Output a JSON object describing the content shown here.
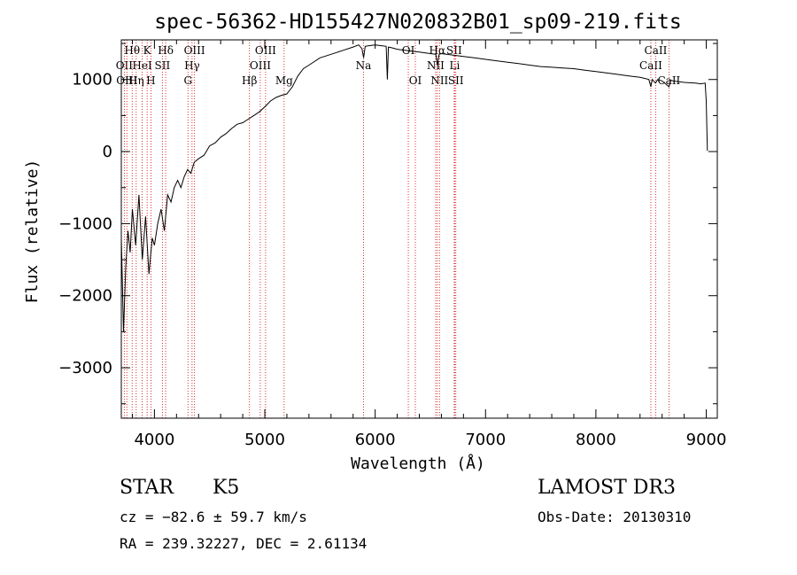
{
  "chart_data": {
    "type": "line",
    "title": "spec-56362-HD155427N020832B01_sp09-219.fits",
    "xlabel": "Wavelength (Å)",
    "ylabel": "Flux (relative)",
    "xlim": [
      3700,
      9100
    ],
    "ylim": [
      -3700,
      1550
    ],
    "xticks": [
      4000,
      5000,
      6000,
      7000,
      8000,
      9000
    ],
    "yticks": [
      -3000,
      -2000,
      -1000,
      0,
      1000
    ],
    "grid": false,
    "series": [
      {
        "x": [
          3700,
          3720,
          3740,
          3760,
          3780,
          3800,
          3830,
          3860,
          3890,
          3920,
          3950,
          3980,
          4000,
          4030,
          4060,
          4090,
          4120,
          4150,
          4180,
          4210,
          4240,
          4270,
          4300,
          4330,
          4360,
          4400,
          4450,
          4500,
          4550,
          4600,
          4650,
          4700,
          4750,
          4800,
          4850,
          4900,
          4950,
          5000,
          5050,
          5100,
          5150,
          5200,
          5250,
          5300,
          5350,
          5400,
          5500,
          5600,
          5700,
          5800,
          5850,
          5880,
          5895,
          5910,
          5950,
          6000,
          6050,
          6100,
          6110,
          6120,
          6150,
          6200,
          6300,
          6400,
          6500,
          6550,
          6563,
          6580,
          6600,
          6700,
          6800,
          6900,
          7000,
          7100,
          7200,
          7300,
          7400,
          7500,
          7600,
          7700,
          7800,
          7900,
          8000,
          8100,
          8200,
          8300,
          8400,
          8480,
          8498,
          8510,
          8540,
          8560,
          8600,
          8662,
          8680,
          8700,
          8800,
          8900,
          8950,
          8990,
          9000,
          9010
        ],
        "y": [
          -1200,
          -2500,
          -1600,
          -1100,
          -1400,
          -800,
          -1300,
          -600,
          -1500,
          -900,
          -1700,
          -1200,
          -1300,
          -1000,
          -800,
          -1100,
          -600,
          -700,
          -500,
          -400,
          -500,
          -350,
          -250,
          -300,
          -150,
          -100,
          -50,
          80,
          120,
          200,
          250,
          320,
          380,
          400,
          450,
          500,
          550,
          620,
          700,
          750,
          780,
          800,
          900,
          1050,
          1150,
          1200,
          1300,
          1350,
          1400,
          1450,
          1480,
          1430,
          1300,
          1460,
          1470,
          1480,
          1470,
          1460,
          1000,
          1450,
          1440,
          1420,
          1400,
          1380,
          1360,
          1350,
          1200,
          1350,
          1360,
          1340,
          1320,
          1300,
          1280,
          1260,
          1240,
          1220,
          1200,
          1180,
          1170,
          1160,
          1150,
          1130,
          1110,
          1090,
          1070,
          1050,
          1030,
          1000,
          900,
          1000,
          950,
          1000,
          980,
          900,
          990,
          980,
          960,
          950,
          940,
          950,
          700,
          10
        ]
      }
    ],
    "line_markers": [
      {
        "wl": 3727,
        "labels": [
          "OII"
        ],
        "row": 1
      },
      {
        "wl": 3750,
        "labels": [
          "OIII"
        ],
        "row": 2
      },
      {
        "wl": 3798,
        "labels": [
          "Hθ"
        ],
        "row": 0
      },
      {
        "wl": 3835,
        "labels": [
          "Hη"
        ],
        "row": 2
      },
      {
        "wl": 3889,
        "labels": [
          "HeI"
        ],
        "row": 1
      },
      {
        "wl": 3934,
        "labels": [
          "K"
        ],
        "row": 0
      },
      {
        "wl": 3968,
        "labels": [
          "H"
        ],
        "row": 2
      },
      {
        "wl": 4072,
        "labels": [
          "SII"
        ],
        "row": 1
      },
      {
        "wl": 4102,
        "labels": [
          "Hδ"
        ],
        "row": 0
      },
      {
        "wl": 4304,
        "labels": [
          "G"
        ],
        "row": 2
      },
      {
        "wl": 4341,
        "labels": [
          "Hγ"
        ],
        "row": 1
      },
      {
        "wl": 4363,
        "labels": [
          "OIII"
        ],
        "row": 0
      },
      {
        "wl": 4861,
        "labels": [
          "Hβ"
        ],
        "row": 2
      },
      {
        "wl": 4959,
        "labels": [
          "OIII"
        ],
        "row": 1
      },
      {
        "wl": 5007,
        "labels": [
          "OIII"
        ],
        "row": 0
      },
      {
        "wl": 5175,
        "labels": [
          "Mg"
        ],
        "row": 2
      },
      {
        "wl": 5894,
        "labels": [
          "Na"
        ],
        "row": 1
      },
      {
        "wl": 6300,
        "labels": [
          "OI"
        ],
        "row": 0
      },
      {
        "wl": 6364,
        "labels": [
          "OI"
        ],
        "row": 2
      },
      {
        "wl": 6548,
        "labels": [
          "NII"
        ],
        "row": 1
      },
      {
        "wl": 6563,
        "labels": [
          "Hα"
        ],
        "row": 0
      },
      {
        "wl": 6583,
        "labels": [
          "NII"
        ],
        "row": 2
      },
      {
        "wl": 6716,
        "labels": [
          "SII"
        ],
        "row": 0
      },
      {
        "wl": 6731,
        "labels": [
          "SII"
        ],
        "row": 2
      },
      {
        "wl": 6720,
        "labels": [
          "Li"
        ],
        "row": 1
      },
      {
        "wl": 8498,
        "labels": [
          "CaII"
        ],
        "row": 1
      },
      {
        "wl": 8542,
        "labels": [
          "CaII"
        ],
        "row": 0
      },
      {
        "wl": 8662,
        "labels": [
          "CaII"
        ],
        "row": 2
      }
    ]
  },
  "info": {
    "class_label": "STAR",
    "subclass": "K5",
    "survey": "LAMOST DR3",
    "cz": "cz = −82.6 ± 59.7 km/s",
    "obs_date": "Obs-Date: 20130310",
    "coords": "RA = 239.32227, DEC =   2.61134"
  },
  "colors": {
    "spectrum": "#000000",
    "marker_line": "#cc0000",
    "axis": "#000000"
  }
}
